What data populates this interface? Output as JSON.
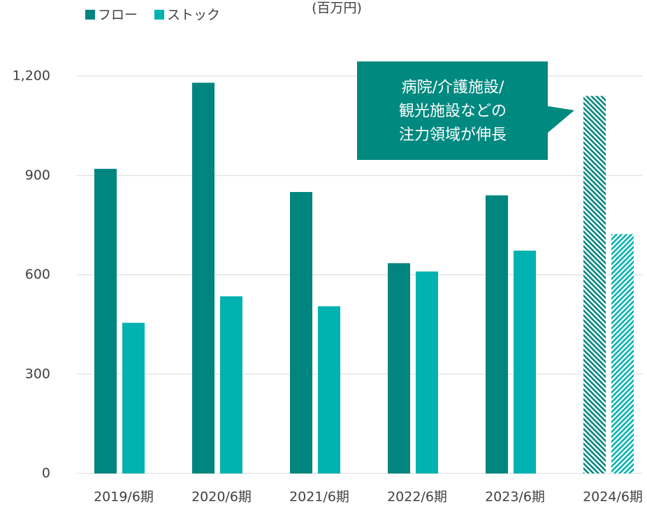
{
  "chart_data": {
    "type": "bar",
    "y_label": "(百万円)",
    "categories": [
      "2019/6期",
      "2020/6期",
      "2021/6期",
      "2022/6期",
      "2023/6期",
      "2024/6期"
    ],
    "series": [
      {
        "name": "フロー",
        "color": "#00857f",
        "values": [
          920,
          1180,
          850,
          635,
          840,
          1140
        ]
      },
      {
        "name": "ストック",
        "color": "#00b2b0",
        "values": [
          455,
          535,
          505,
          610,
          673,
          723
        ]
      }
    ],
    "hatch": [
      false,
      false,
      false,
      false,
      false,
      true
    ],
    "annotation": {
      "lines": [
        "病院/介護施設/",
        "観光施設などの",
        "注力領域が伸長"
      ],
      "color": "#00897f"
    },
    "ylim": [
      0,
      1200
    ],
    "yticks": [
      0,
      300,
      600,
      900,
      {
        "value": 1200,
        "label": "1,200"
      }
    ],
    "grid": true,
    "legend": "top-left"
  }
}
